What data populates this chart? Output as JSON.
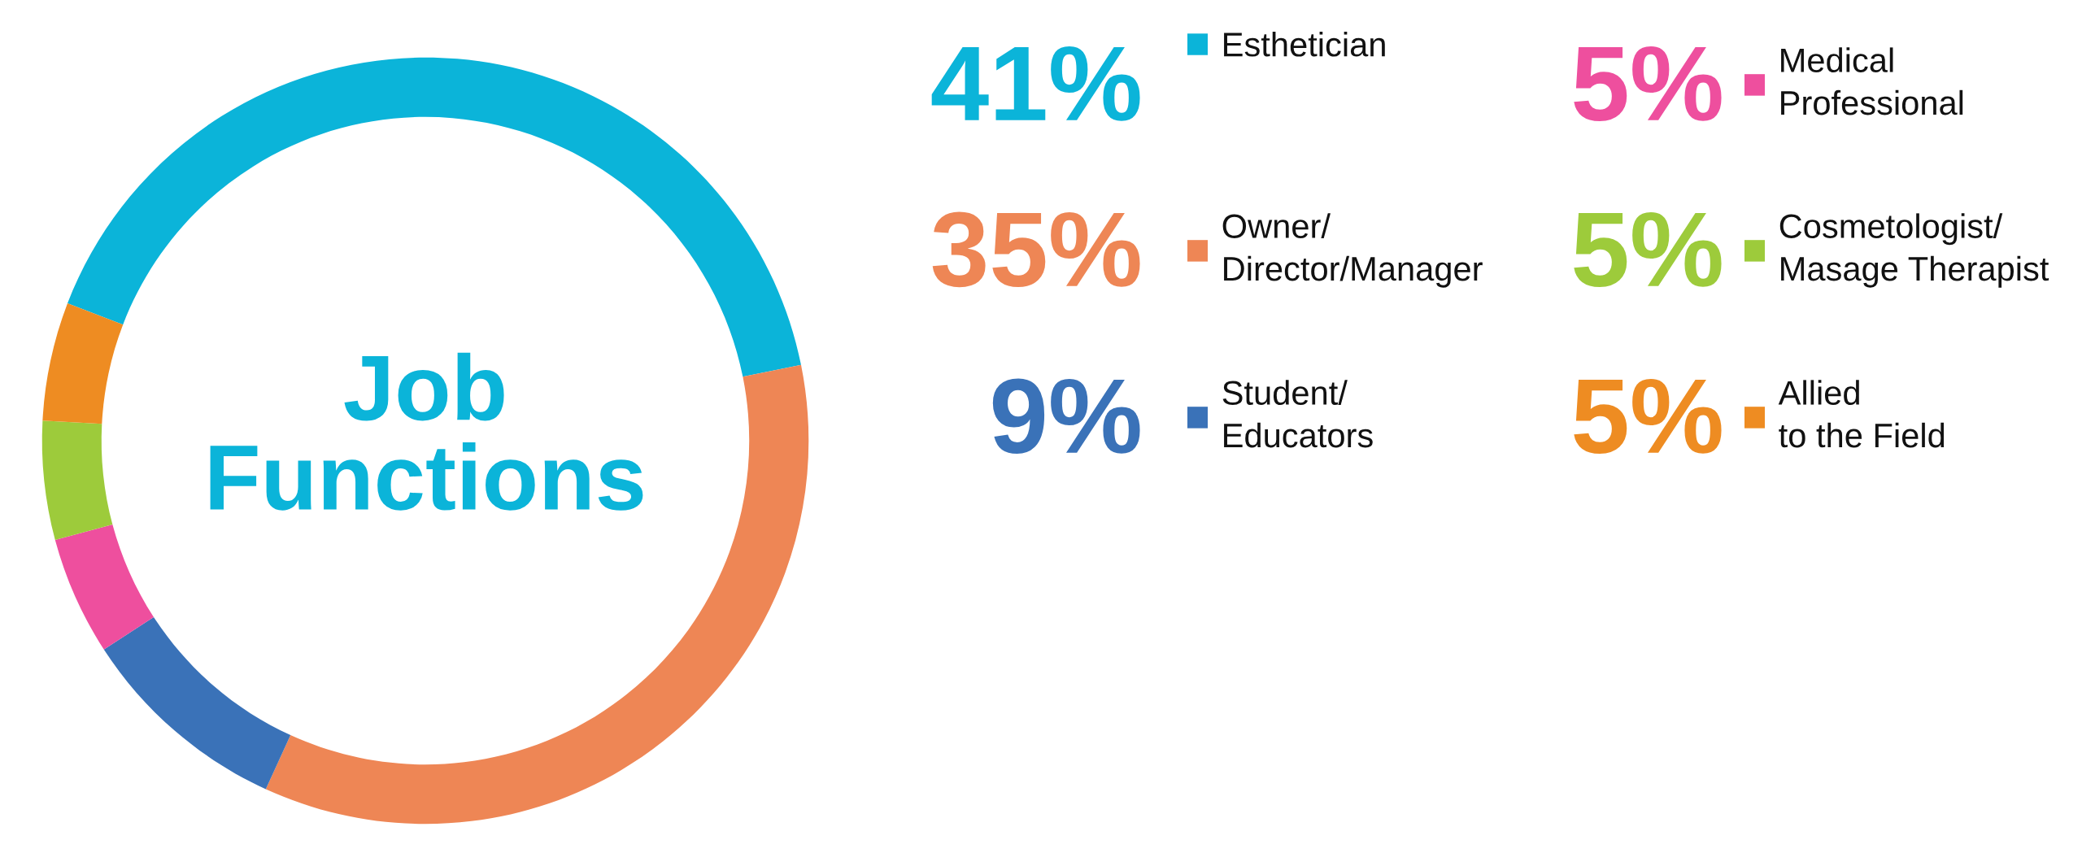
{
  "chart_data": {
    "type": "donut",
    "title": "Job\nFunctions",
    "categories": [
      "Esthetician",
      "Owner/\nDirector/Manager",
      "Student/\nEducators",
      "Medical\nProfessional",
      "Cosmetologist/\nMasage Therapist",
      "Allied\nto the Field"
    ],
    "values": [
      41,
      35,
      9,
      5,
      5,
      5
    ],
    "value_labels": [
      "41%",
      "35%",
      "9%",
      "5%",
      "5%",
      "5%"
    ],
    "colors": [
      "#0bb4d9",
      "#ee8655",
      "#3a72b8",
      "#ee4f9e",
      "#9dcb3b",
      "#ee8c22"
    ],
    "legend": "right"
  }
}
